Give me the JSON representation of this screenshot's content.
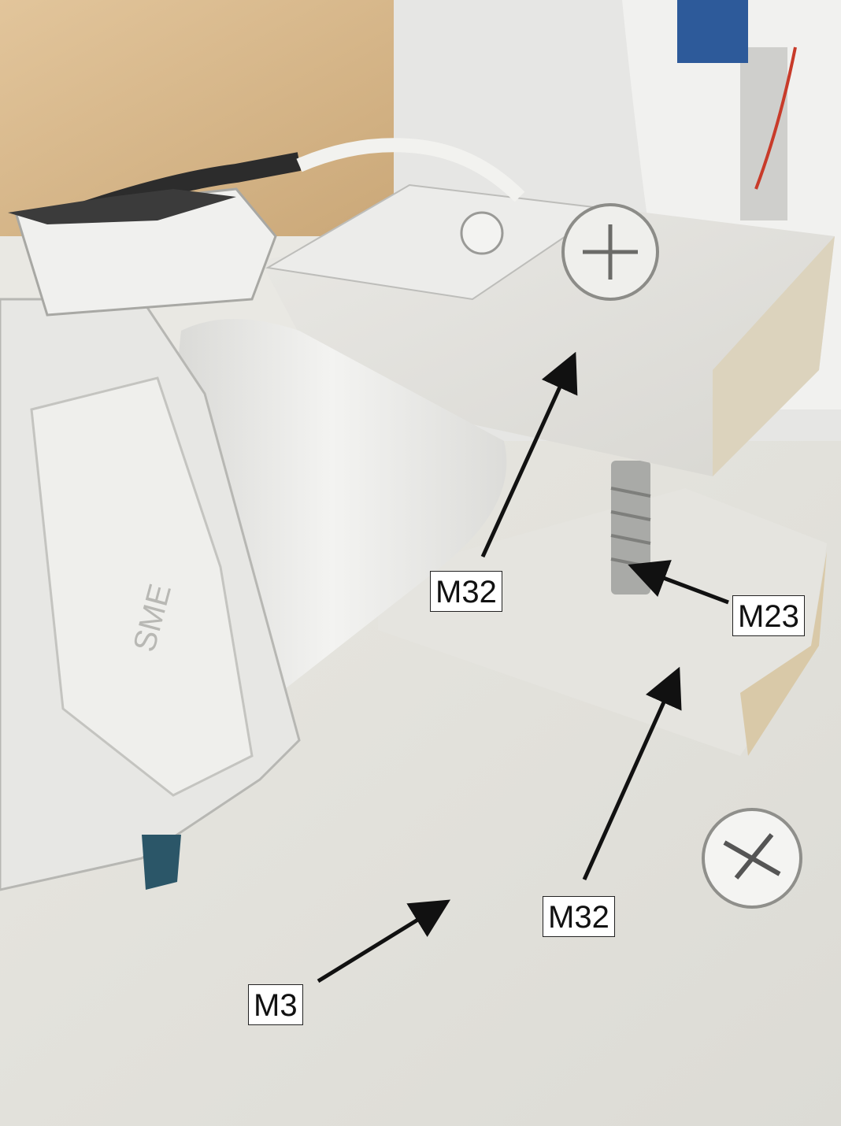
{
  "labels": {
    "top_m32": "M32",
    "m23": "M23",
    "bottom_m32": "M32",
    "m3": "M3"
  },
  "colors": {
    "arrow": "#111111",
    "label_border": "#222222",
    "paint_white": "#ecebe6",
    "wood_wall": "#d9b98a"
  },
  "icons": {
    "embossed_logo": "SME"
  }
}
